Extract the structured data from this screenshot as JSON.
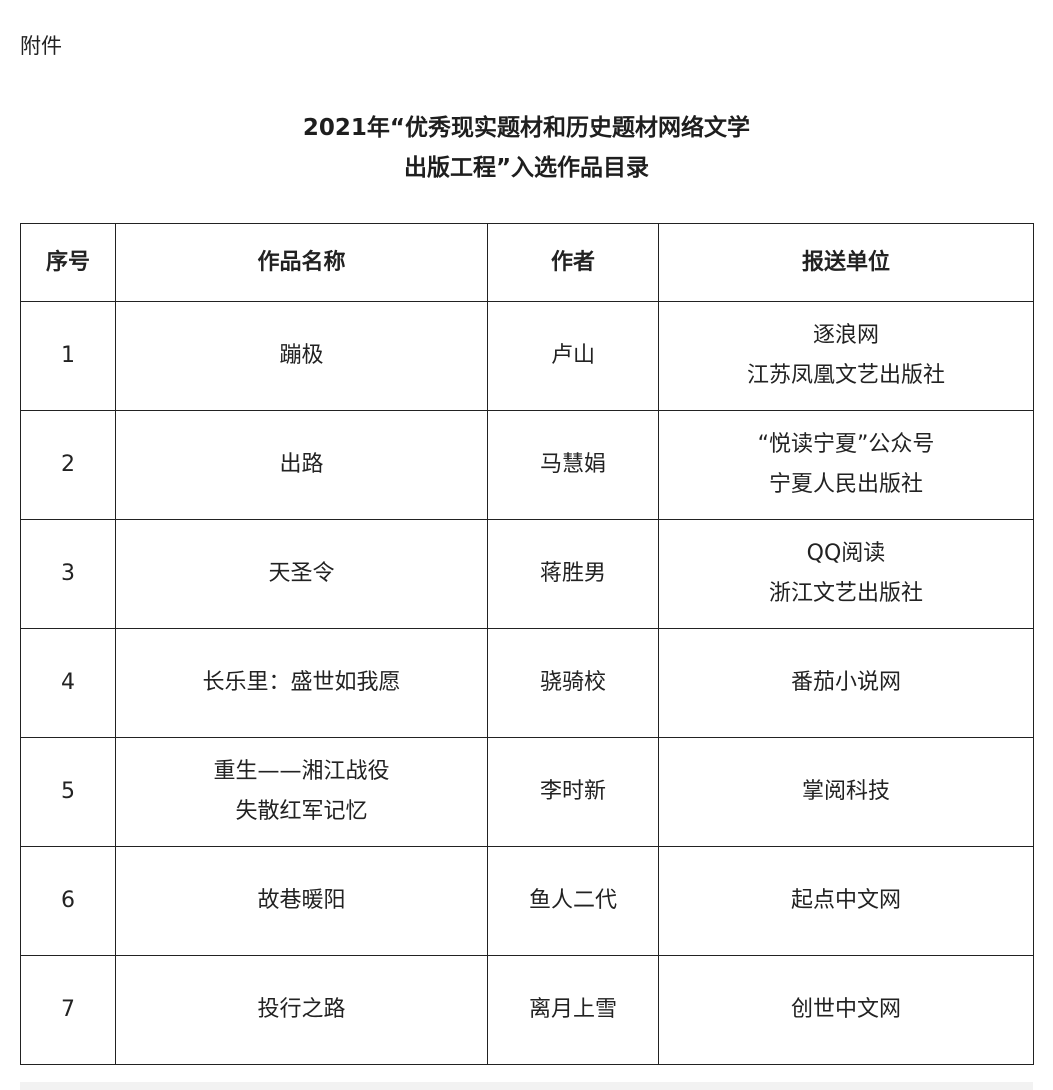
{
  "attachment_label": "附件",
  "title": [
    "2021年“优秀现实题材和历史题材网络文学",
    "出版工程”入选作品目录"
  ],
  "table": {
    "headers": [
      "序号",
      "作品名称",
      "作者",
      "报送单位"
    ],
    "rows": [
      {
        "no": "1",
        "work": [
          "蹦极"
        ],
        "author": "卢山",
        "unit": [
          "逐浪网",
          "江苏凤凰文艺出版社"
        ]
      },
      {
        "no": "2",
        "work": [
          "出路"
        ],
        "author": "马慧娟",
        "unit": [
          "“悦读宁夏”公众号",
          "宁夏人民出版社"
        ]
      },
      {
        "no": "3",
        "work": [
          "天圣令"
        ],
        "author": "蒋胜男",
        "unit": [
          "QQ阅读",
          "浙江文艺出版社"
        ]
      },
      {
        "no": "4",
        "work": [
          "长乐里：盛世如我愿"
        ],
        "author": "骁骑校",
        "unit": [
          "番茄小说网"
        ]
      },
      {
        "no": "5",
        "work": [
          "重生——湘江战役",
          "失散红军记忆"
        ],
        "author": "李时新",
        "unit": [
          "掌阅科技"
        ]
      },
      {
        "no": "6",
        "work": [
          "故巷暖阳"
        ],
        "author": "鱼人二代",
        "unit": [
          "起点中文网"
        ]
      },
      {
        "no": "7",
        "work": [
          "投行之路"
        ],
        "author": "离月上雪",
        "unit": [
          "创世中文网"
        ]
      }
    ]
  }
}
